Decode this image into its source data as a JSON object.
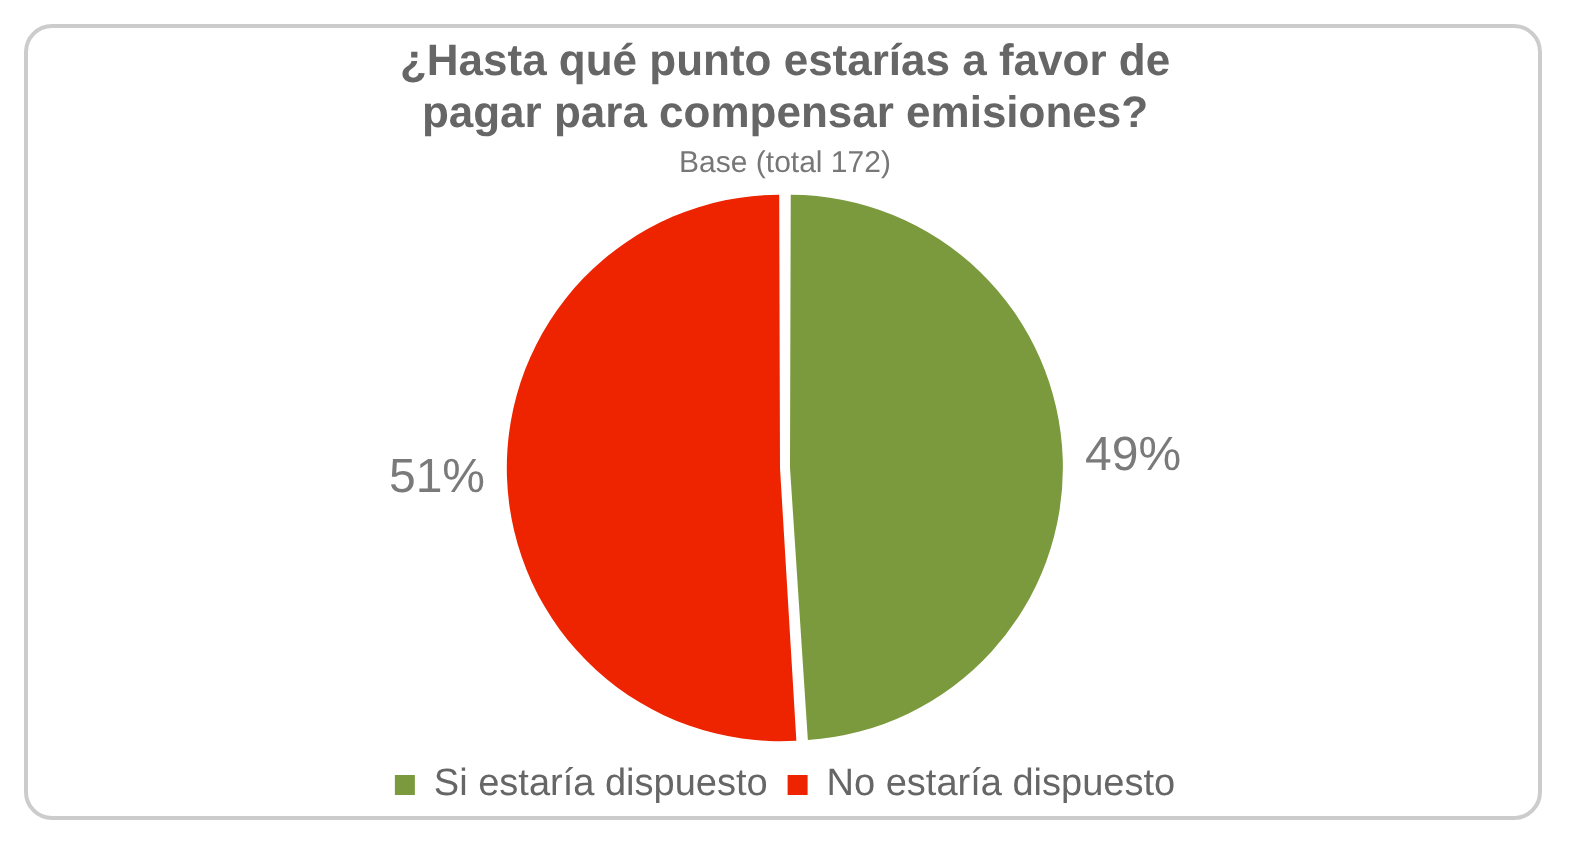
{
  "chart_data": {
    "type": "pie",
    "title": "¿Hasta qué punto estarías a favor de pagar para compensar emisiones?",
    "subtitle": "Base (total 172)",
    "categories": [
      "Si estaría dispuesto",
      "No estaría dispuesto"
    ],
    "values": [
      49,
      51
    ],
    "colors": [
      "#7b9a3e",
      "#ee2400"
    ],
    "value_labels": [
      "49%",
      "51%"
    ],
    "legend": "bottom"
  }
}
